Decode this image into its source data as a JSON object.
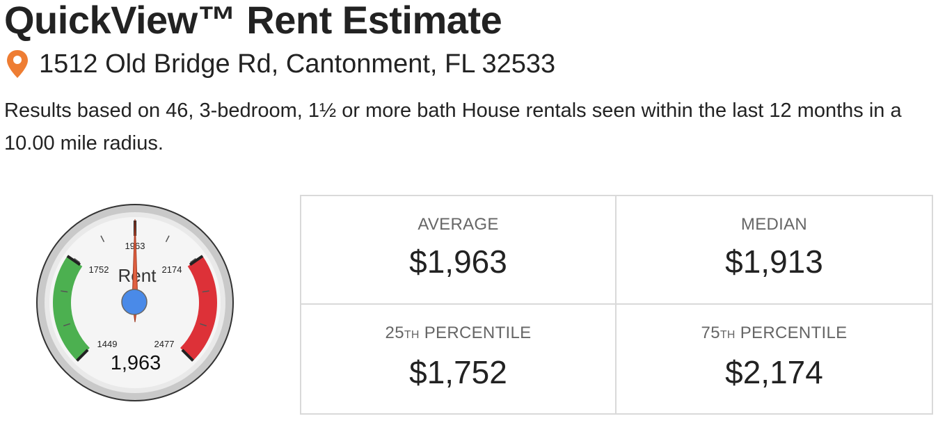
{
  "header": {
    "title": "QuickView™ Rent Estimate",
    "address": "1512 Old Bridge Rd, Cantonment, FL 32533",
    "pin_icon": "map-pin-icon",
    "pin_color": "#ee7d33"
  },
  "summary": {
    "text": "Results based on 46, 3-bedroom, 1½ or more bath House rentals seen within the last 12 months in a 10.00 mile radius."
  },
  "gauge": {
    "title": "Rent",
    "value": 1963,
    "value_label": "1,963",
    "min": 1449,
    "max": 2477,
    "tick_labels": {
      "min": "1449",
      "low": "1752",
      "mid": "1963",
      "high": "2174",
      "max": "2477"
    },
    "green_range": [
      1449,
      1752
    ],
    "red_range": [
      2174,
      2477
    ],
    "colors": {
      "green": "#4cb050",
      "red": "#dd3138",
      "needle": "#e06040",
      "hub": "#4a8ae8"
    }
  },
  "stats": {
    "average": {
      "label": "AVERAGE",
      "value": "$1,963"
    },
    "median": {
      "label": "MEDIAN",
      "value": "$1,913"
    },
    "p25": {
      "label_num": "25",
      "label_sup": "TH",
      "label_rest": " PERCENTILE",
      "value": "$1,752"
    },
    "p75": {
      "label_num": "75",
      "label_sup": "TH",
      "label_rest": " PERCENTILE",
      "value": "$2,174"
    }
  }
}
